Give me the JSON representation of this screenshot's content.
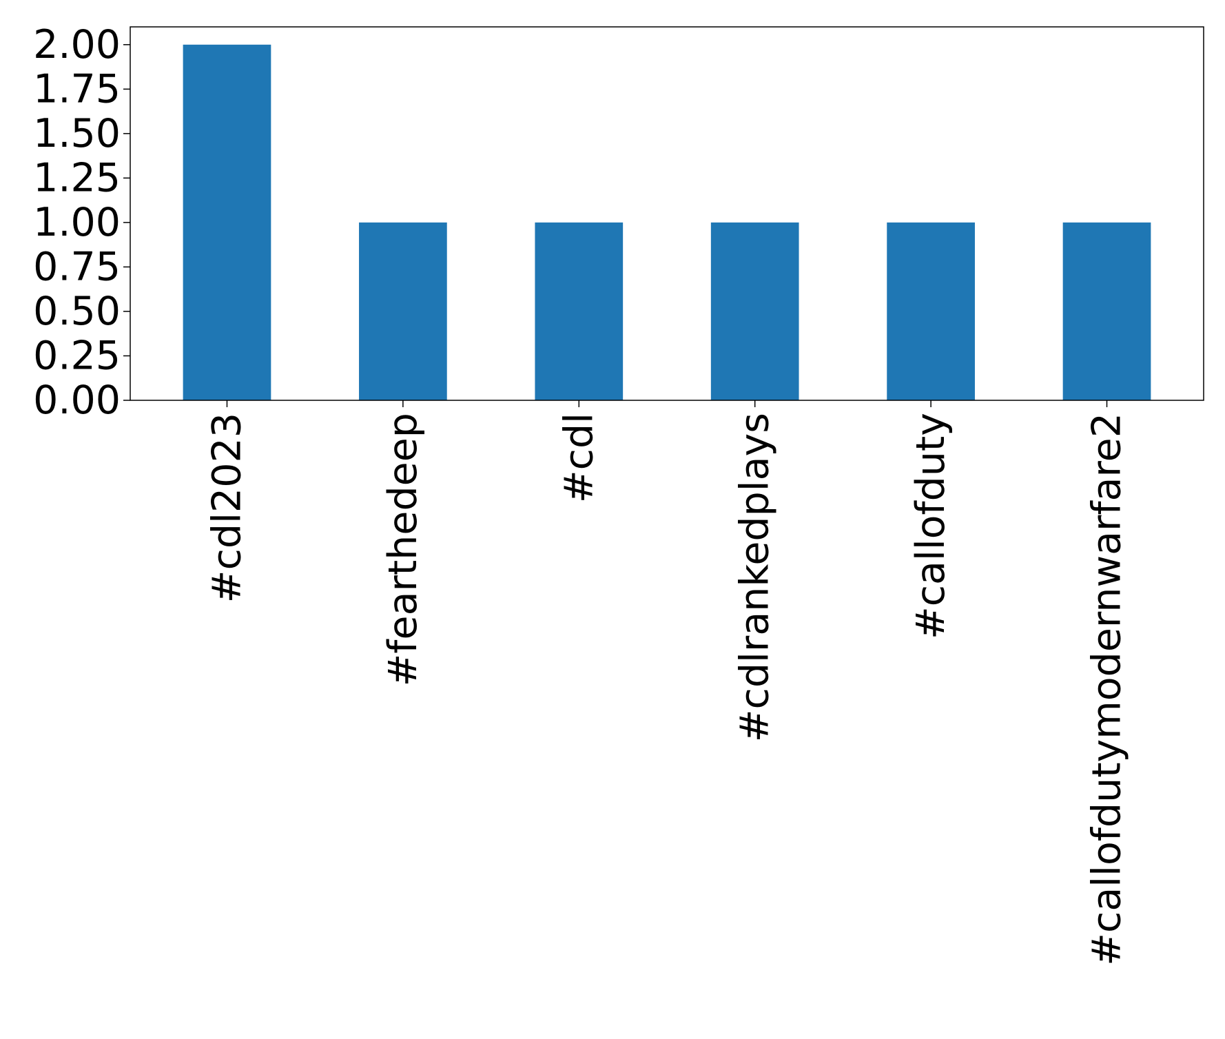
{
  "chart_data": {
    "type": "bar",
    "categories": [
      "#cdl2023",
      "#fearthedeep",
      "#cdl",
      "#cdlrankedplays",
      "#callofduty",
      "#callofdutymodernwarfare2"
    ],
    "values": [
      2,
      1,
      1,
      1,
      1,
      1
    ],
    "title": "",
    "xlabel": "",
    "ylabel": "",
    "ylim": [
      0,
      2.1
    ],
    "yticks": [
      "0.00",
      "0.25",
      "0.50",
      "0.75",
      "1.00",
      "1.25",
      "1.50",
      "1.75",
      "2.00"
    ],
    "grid": false,
    "legend": "none",
    "bar_color": "#1f77b4"
  }
}
